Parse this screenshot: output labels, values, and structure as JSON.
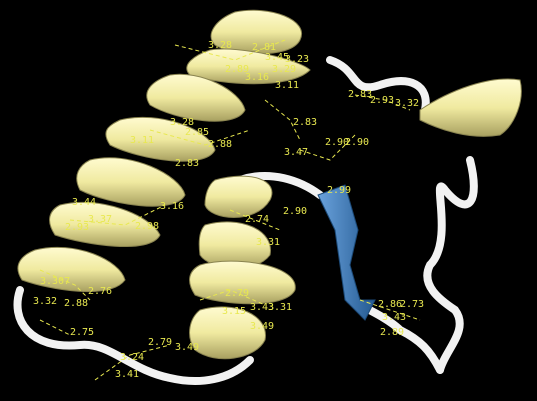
{
  "viewer": {
    "background": "#000000",
    "colors": {
      "helix": "#f0eaa0",
      "helix_shade": "#b8b070",
      "sheet": "#3f7fc0",
      "sheet_shade": "#245a92",
      "coil": "#f4f4f4",
      "hbond": "#e8e850"
    }
  },
  "distance_labels": [
    {
      "id": "d1",
      "text": "3.28"
    },
    {
      "id": "d2",
      "text": "2.81"
    },
    {
      "id": "d3",
      "text": "3.45"
    },
    {
      "id": "d4",
      "text": "3.23"
    },
    {
      "id": "d5",
      "text": "2.89"
    },
    {
      "id": "d6",
      "text": "3.29"
    },
    {
      "id": "d7",
      "text": "3.16"
    },
    {
      "id": "d8",
      "text": "3.11"
    },
    {
      "id": "d9",
      "text": "2.83"
    },
    {
      "id": "d10",
      "text": "3.47"
    },
    {
      "id": "d11",
      "text": "3.28"
    },
    {
      "id": "d12",
      "text": "2.85"
    },
    {
      "id": "d13",
      "text": "3.11"
    },
    {
      "id": "d14",
      "text": "2.88"
    },
    {
      "id": "d15",
      "text": "2.83"
    },
    {
      "id": "d16",
      "text": "2.90"
    },
    {
      "id": "d17",
      "text": "2.99"
    },
    {
      "id": "d18",
      "text": "3.16"
    },
    {
      "id": "d19",
      "text": "2.98"
    },
    {
      "id": "d20",
      "text": "2.74"
    },
    {
      "id": "d21",
      "text": "2.90"
    },
    {
      "id": "d22",
      "text": "3.31"
    },
    {
      "id": "d23",
      "text": "3.44"
    },
    {
      "id": "d24",
      "text": "2.93"
    },
    {
      "id": "d25",
      "text": "3.37"
    },
    {
      "id": "d26",
      "text": "3.307"
    },
    {
      "id": "d27",
      "text": "2.76"
    },
    {
      "id": "d28",
      "text": "3.32"
    },
    {
      "id": "d29",
      "text": "2.88"
    },
    {
      "id": "d30",
      "text": "2.75"
    },
    {
      "id": "d31",
      "text": "2.79"
    },
    {
      "id": "d32",
      "text": "3.24"
    },
    {
      "id": "d33",
      "text": "3.41"
    },
    {
      "id": "d34",
      "text": "3.49"
    },
    {
      "id": "d35",
      "text": "2.79"
    },
    {
      "id": "d36",
      "text": "3.15"
    },
    {
      "id": "d37",
      "text": "3.43"
    },
    {
      "id": "d38",
      "text": "3.31"
    },
    {
      "id": "d39",
      "text": "3.49"
    },
    {
      "id": "d40",
      "text": "2.86"
    },
    {
      "id": "d41",
      "text": "2.73"
    },
    {
      "id": "d42",
      "text": "3.43"
    },
    {
      "id": "d43",
      "text": "2.89"
    },
    {
      "id": "d44",
      "text": "2.93"
    },
    {
      "id": "d45",
      "text": "3.32"
    },
    {
      "id": "d46",
      "text": "2.90"
    },
    {
      "id": "d47",
      "text": "2.83"
    }
  ]
}
